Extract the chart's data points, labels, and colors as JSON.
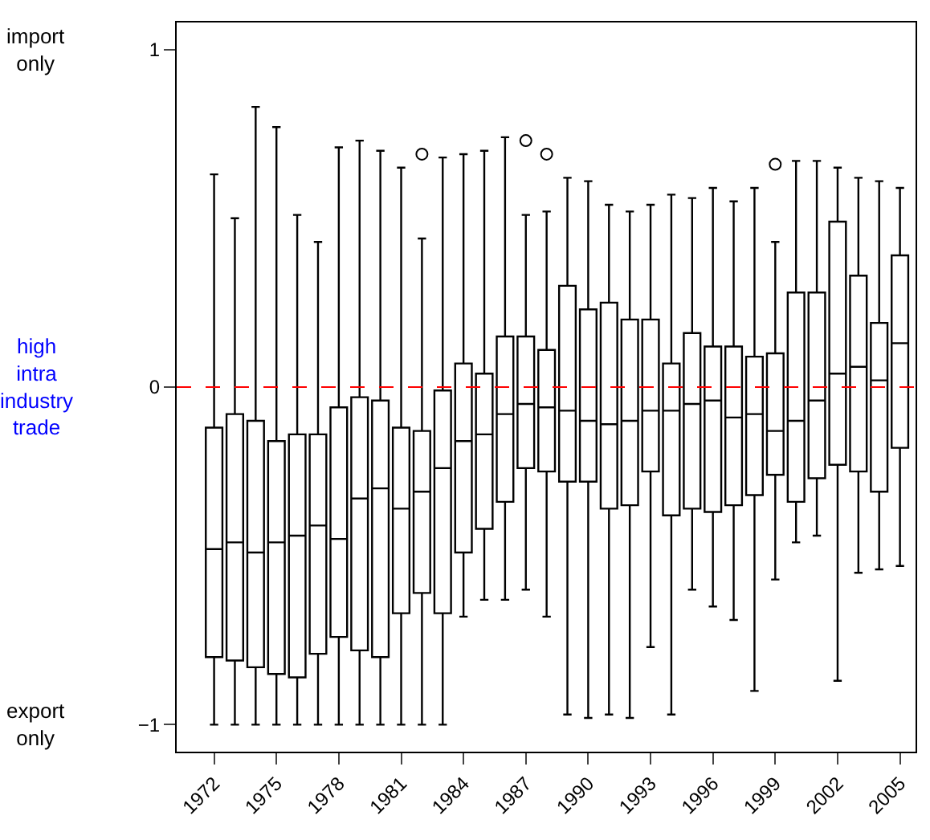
{
  "chart_data": {
    "type": "box",
    "categories": [
      "1972",
      null,
      null,
      "1975",
      null,
      null,
      "1978",
      null,
      null,
      "1981",
      null,
      null,
      "1984",
      null,
      null,
      "1987",
      null,
      null,
      "1990",
      null,
      null,
      "1993",
      null,
      null,
      "1996",
      null,
      null,
      "1999",
      null,
      null,
      "2002",
      null,
      null,
      "2005"
    ],
    "boxes": [
      {
        "low": -1,
        "q1": -0.8,
        "median": -0.48,
        "q3": -0.12,
        "high": 0.63
      },
      {
        "low": -1,
        "q1": -0.81,
        "median": -0.46,
        "q3": -0.08,
        "high": 0.5
      },
      {
        "low": -1,
        "q1": -0.83,
        "median": -0.49,
        "q3": -0.1,
        "high": 0.83
      },
      {
        "low": -1,
        "q1": -0.85,
        "median": -0.46,
        "q3": -0.16,
        "high": 0.77
      },
      {
        "low": -1,
        "q1": -0.86,
        "median": -0.44,
        "q3": -0.14,
        "high": 0.51
      },
      {
        "low": -1,
        "q1": -0.79,
        "median": -0.41,
        "q3": -0.14,
        "high": 0.43
      },
      {
        "low": -1,
        "q1": -0.74,
        "median": -0.45,
        "q3": -0.06,
        "high": 0.71
      },
      {
        "low": -1,
        "q1": -0.78,
        "median": -0.33,
        "q3": -0.03,
        "high": 0.73
      },
      {
        "low": -1,
        "q1": -0.8,
        "median": -0.3,
        "q3": -0.04,
        "high": 0.7
      },
      {
        "low": -1,
        "q1": -0.67,
        "median": -0.36,
        "q3": -0.12,
        "high": 0.65
      },
      {
        "low": -1,
        "q1": -0.61,
        "median": -0.31,
        "q3": -0.13,
        "high": 0.44,
        "outliers": [
          0.69
        ]
      },
      {
        "low": -1,
        "q1": -0.67,
        "median": -0.24,
        "q3": -0.01,
        "high": 0.68
      },
      {
        "low": -0.68,
        "q1": -0.49,
        "median": -0.16,
        "q3": 0.07,
        "high": 0.69
      },
      {
        "low": -0.63,
        "q1": -0.42,
        "median": -0.14,
        "q3": 0.04,
        "high": 0.7
      },
      {
        "low": -0.63,
        "q1": -0.34,
        "median": -0.08,
        "q3": 0.15,
        "high": 0.74
      },
      {
        "low": -0.6,
        "q1": -0.24,
        "median": -0.05,
        "q3": 0.15,
        "high": 0.51,
        "outliers": [
          0.73
        ]
      },
      {
        "low": -0.68,
        "q1": -0.25,
        "median": -0.06,
        "q3": 0.11,
        "high": 0.52,
        "outliers": [
          0.69
        ]
      },
      {
        "low": -0.97,
        "q1": -0.28,
        "median": -0.07,
        "q3": 0.3,
        "high": 0.62
      },
      {
        "low": -0.98,
        "q1": -0.28,
        "median": -0.1,
        "q3": 0.23,
        "high": 0.61
      },
      {
        "low": -0.97,
        "q1": -0.36,
        "median": -0.11,
        "q3": 0.25,
        "high": 0.54
      },
      {
        "low": -0.98,
        "q1": -0.35,
        "median": -0.1,
        "q3": 0.2,
        "high": 0.52
      },
      {
        "low": -0.77,
        "q1": -0.25,
        "median": -0.07,
        "q3": 0.2,
        "high": 0.54
      },
      {
        "low": -0.97,
        "q1": -0.38,
        "median": -0.07,
        "q3": 0.07,
        "high": 0.57
      },
      {
        "low": -0.6,
        "q1": -0.36,
        "median": -0.05,
        "q3": 0.16,
        "high": 0.56
      },
      {
        "low": -0.65,
        "q1": -0.37,
        "median": -0.04,
        "q3": 0.12,
        "high": 0.59
      },
      {
        "low": -0.69,
        "q1": -0.35,
        "median": -0.09,
        "q3": 0.12,
        "high": 0.55
      },
      {
        "low": -0.9,
        "q1": -0.32,
        "median": -0.08,
        "q3": 0.09,
        "high": 0.59
      },
      {
        "low": -0.57,
        "q1": -0.26,
        "median": -0.13,
        "q3": 0.1,
        "high": 0.43,
        "outliers": [
          0.66
        ]
      },
      {
        "low": -0.46,
        "q1": -0.34,
        "median": -0.1,
        "q3": 0.28,
        "high": 0.67
      },
      {
        "low": -0.44,
        "q1": -0.27,
        "median": -0.04,
        "q3": 0.28,
        "high": 0.67
      },
      {
        "low": -0.87,
        "q1": -0.23,
        "median": 0.04,
        "q3": 0.49,
        "high": 0.65
      },
      {
        "low": -0.55,
        "q1": -0.25,
        "median": 0.06,
        "q3": 0.33,
        "high": 0.62
      },
      {
        "low": -0.54,
        "q1": -0.31,
        "median": 0.02,
        "q3": 0.19,
        "high": 0.61
      },
      {
        "low": -0.53,
        "q1": -0.18,
        "median": 0.13,
        "q3": 0.39,
        "high": 0.59
      }
    ],
    "ylim": [
      -1.08,
      1.08
    ],
    "yticks": [
      -1,
      0,
      1
    ],
    "grid": false,
    "ref_lines": [
      {
        "axis": "y",
        "value": 0,
        "color": "#ff0000",
        "line_style": "dashed"
      }
    ],
    "annotations": [
      "import only",
      "high intra industry trade",
      "export only"
    ]
  }
}
